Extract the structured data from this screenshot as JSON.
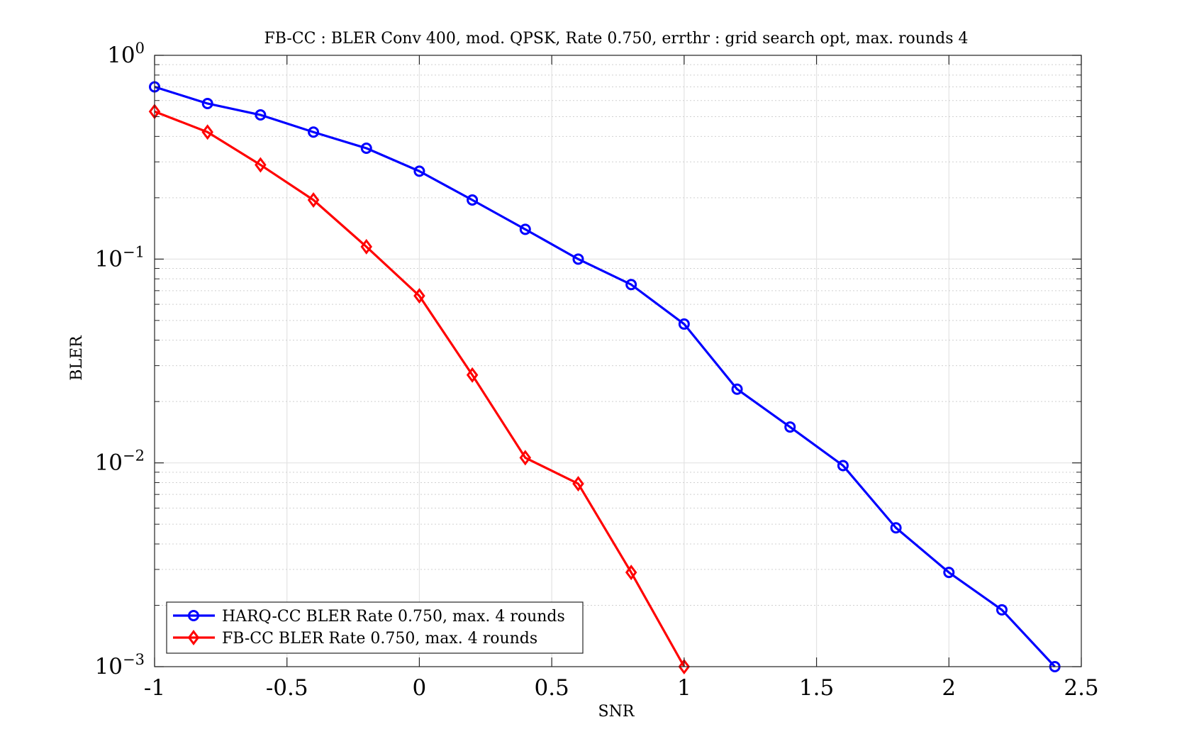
{
  "chart_data": {
    "type": "line",
    "title": "FB-CC : BLER Conv 400, mod. QPSK, Rate 0.750, errthr : grid search opt, max. rounds 4",
    "xlabel": "SNR",
    "ylabel": "BLER",
    "xlim": [
      -1,
      2.5
    ],
    "ylim": [
      0.001,
      1
    ],
    "yscale": "log",
    "grid": true,
    "minor_grid": true,
    "legend_position": "bottom-left",
    "x_ticks": [
      "-1",
      "-0.5",
      "0",
      "0.5",
      "1",
      "1.5",
      "2",
      "2.5"
    ],
    "x_tick_values": [
      -1,
      -0.5,
      0,
      0.5,
      1,
      1.5,
      2,
      2.5
    ],
    "y_ticks": [
      {
        "value": 1,
        "base": "10",
        "exp": "0"
      },
      {
        "value": 0.1,
        "base": "10",
        "exp": "−1"
      },
      {
        "value": 0.01,
        "base": "10",
        "exp": "−2"
      },
      {
        "value": 0.001,
        "base": "10",
        "exp": "−3"
      }
    ],
    "series": [
      {
        "name": "HARQ-CC BLER Rate 0.750, max. 4 rounds",
        "color": "#0000ff",
        "marker": "circle",
        "x": [
          -1,
          -0.8,
          -0.6,
          -0.4,
          -0.2,
          0,
          0.2,
          0.4,
          0.6,
          0.8,
          1,
          1.2,
          1.4,
          1.6,
          1.8,
          2,
          2.2,
          2.4
        ],
        "y": [
          0.7,
          0.58,
          0.51,
          0.42,
          0.35,
          0.27,
          0.195,
          0.14,
          0.1,
          0.075,
          0.048,
          0.023,
          0.015,
          0.0097,
          0.0048,
          0.0029,
          0.0019,
          0.001
        ]
      },
      {
        "name": "FB-CC BLER Rate 0.750, max. 4 rounds",
        "color": "#ff0000",
        "marker": "diamond",
        "x": [
          -1,
          -0.8,
          -0.6,
          -0.4,
          -0.2,
          0,
          0.2,
          0.4,
          0.6,
          0.8,
          1
        ],
        "y": [
          0.53,
          0.42,
          0.29,
          0.195,
          0.115,
          0.066,
          0.027,
          0.0106,
          0.0079,
          0.0029,
          0.001
        ]
      }
    ]
  }
}
